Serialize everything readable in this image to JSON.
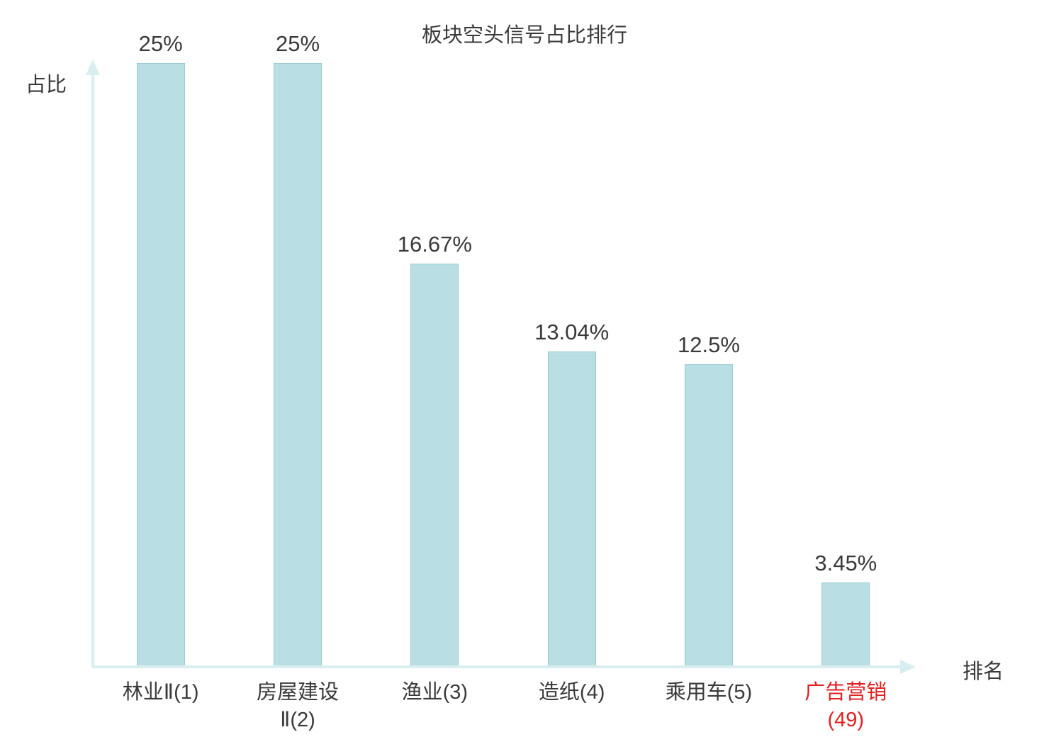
{
  "chart_data": {
    "type": "bar",
    "title": "板块空头信号占比排行",
    "xlabel": "排名",
    "ylabel": "占比",
    "categories": [
      "林业Ⅱ(1)",
      "房屋建设Ⅱ(2)",
      "渔业(3)",
      "造纸(4)",
      "乘用车(5)",
      "广告营销(49)"
    ],
    "values": [
      25,
      25,
      16.67,
      13.04,
      12.5,
      3.45
    ],
    "value_labels": [
      "25%",
      "25%",
      "16.67%",
      "13.04%",
      "12.5%",
      "3.45%"
    ],
    "ylim": [
      0,
      25
    ],
    "grid": false,
    "legend": "none",
    "highlight_index": 5,
    "colors": {
      "bar_fill": "#b9dee3",
      "bar_border": "#97cbd2",
      "axis": "#d9eef0",
      "text": "#3a3a3a",
      "highlight": "#e02121"
    }
  }
}
